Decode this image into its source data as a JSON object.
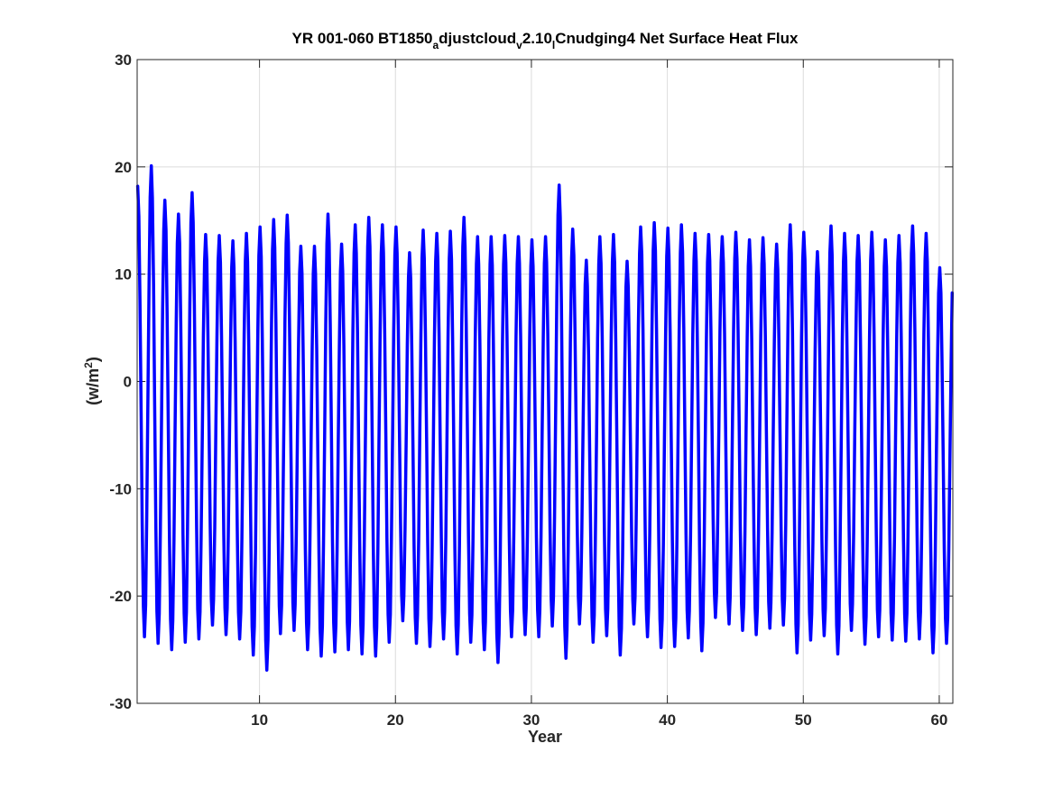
{
  "chart_data": {
    "type": "line",
    "title_parts": {
      "p1": "YR 001-060 BT1850",
      "s1": "a",
      "p2": "djustcloud",
      "s2": "v",
      "p3": "2.10",
      "s3": "l",
      "p4": "Cnudging4 Net Surface Heat Flux"
    },
    "xlabel": "Year",
    "ylabel_parts": {
      "base": "(w/m",
      "sup": "2",
      "close": ")"
    },
    "xlim": [
      1,
      61
    ],
    "ylim": [
      -30,
      30
    ],
    "xticks": [
      10,
      20,
      30,
      40,
      50,
      60
    ],
    "yticks": [
      -30,
      -20,
      -10,
      0,
      10,
      20,
      30
    ],
    "grid": true,
    "line_color": "#0000ff",
    "series": [
      {
        "x_start": 1.04,
        "x_step": 0.08333,
        "annual_max": [
          18.2,
          20.1,
          16.9,
          15.6,
          17.6,
          13.7,
          13.6,
          13.1,
          13.8,
          14.4,
          15.1,
          15.5,
          12.6,
          12.6,
          15.6,
          12.8,
          14.6,
          15.3,
          14.6,
          14.4,
          12.0,
          14.1,
          13.8,
          14.0,
          15.3,
          13.5,
          13.5,
          13.6,
          13.5,
          13.2,
          13.5,
          18.3,
          14.2,
          11.3,
          13.5,
          13.7,
          11.2,
          14.4,
          14.8,
          14.3,
          14.6,
          13.8,
          13.7,
          13.5,
          13.9,
          13.2,
          13.4,
          12.8,
          14.6,
          13.9,
          12.1,
          14.5,
          13.8,
          13.6,
          13.9,
          13.2,
          13.6,
          14.5,
          13.8,
          10.6
        ],
        "annual_min": [
          -23.8,
          -24.4,
          -25.0,
          -24.3,
          -24.0,
          -22.7,
          -23.6,
          -24.0,
          -25.5,
          -26.9,
          -23.5,
          -23.2,
          -25.0,
          -25.6,
          -25.2,
          -25.0,
          -25.4,
          -25.6,
          -24.3,
          -22.3,
          -24.4,
          -24.7,
          -24.0,
          -25.4,
          -24.3,
          -25.0,
          -26.2,
          -23.8,
          -23.6,
          -23.8,
          -22.8,
          -25.8,
          -22.6,
          -24.3,
          -23.7,
          -25.5,
          -22.6,
          -23.8,
          -24.8,
          -24.7,
          -23.9,
          -25.1,
          -22.0,
          -22.6,
          -23.2,
          -23.6,
          -23.0,
          -22.7,
          -25.3,
          -24.1,
          -23.7,
          -25.4,
          -23.2,
          -24.5,
          -23.8,
          -24.1,
          -24.2,
          -24.0,
          -25.3,
          -24.4
        ]
      }
    ]
  }
}
